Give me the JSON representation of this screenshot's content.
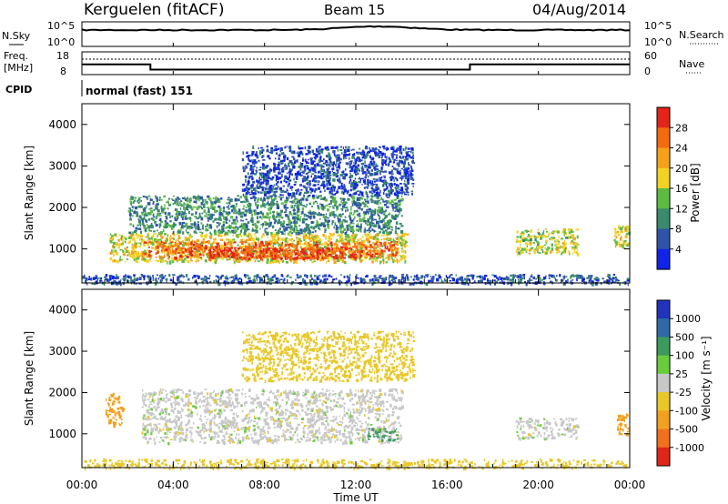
{
  "header": {
    "station": "Kerguelen (fitACF)",
    "beam": "Beam 15",
    "date": "04/Aug/2014"
  },
  "top_panel": {
    "left_label": "N.Sky",
    "left_ticks": [
      "10^5",
      "10^0"
    ],
    "right_label": "N.Search",
    "right_ticks": [
      "10^5",
      "10^0"
    ]
  },
  "freq_panel": {
    "left_label_1": "Freq.",
    "left_label_2": "[MHz]",
    "left_ticks": [
      "18",
      "8"
    ],
    "right_label": "Nave",
    "right_ticks": [
      "60",
      "0"
    ]
  },
  "cpid_panel": {
    "label": "CPID",
    "mode": "normal (fast) 151"
  },
  "x_axis": {
    "label": "Time UT",
    "ticks": [
      "00:00",
      "04:00",
      "08:00",
      "12:00",
      "16:00",
      "20:00",
      "00:00"
    ]
  },
  "power_panel": {
    "ylabel": "Slant Range [km]",
    "yticks": [
      "1000",
      "2000",
      "3000",
      "4000"
    ],
    "colorbar_label": "Power [dB]",
    "colorbar_ticks": [
      "4",
      "8",
      "12",
      "16",
      "20",
      "24",
      "28"
    ],
    "colorbar_colors": [
      "#0f24e6",
      "#2e54a8",
      "#3a8a6e",
      "#5dbb44",
      "#f2d222",
      "#f6a11a",
      "#f36a10",
      "#e2241a"
    ]
  },
  "velocity_panel": {
    "ylabel": "Slant Range [km]",
    "yticks": [
      "1000",
      "2000",
      "3000",
      "4000"
    ],
    "colorbar_label": "Velocity [m s⁻¹]",
    "colorbar_ticks": [
      "1000",
      "500",
      "100",
      "25",
      "-25",
      "-100",
      "-500",
      "-1000"
    ],
    "colorbar_colors": [
      "#2233bb",
      "#2f6aa5",
      "#3c9a5e",
      "#6acc3c",
      "#c8c8c8",
      "#e8c828",
      "#f2a020",
      "#f07020",
      "#e02618"
    ]
  },
  "chart_data": {
    "type": "heatmap",
    "x_range_hours": [
      0,
      24
    ],
    "y_range_km": [
      180,
      4500
    ],
    "freq_mhz_segments": [
      {
        "from_h": 0,
        "to_h": 3,
        "value": 12.5
      },
      {
        "from_h": 3,
        "to_h": 17,
        "value": 10.2
      },
      {
        "from_h": 17,
        "to_h": 24,
        "value": 12.5
      }
    ],
    "power_regions": [
      {
        "t0": 1.2,
        "t1": 14.2,
        "r0": 700,
        "r1": 1400,
        "power_db": 18
      },
      {
        "t0": 2.6,
        "t1": 13.8,
        "r0": 800,
        "r1": 1200,
        "power_db": 26
      },
      {
        "t0": 5.5,
        "t1": 11.5,
        "r0": 780,
        "r1": 1050,
        "power_db": 29
      },
      {
        "t0": 2.0,
        "t1": 14.0,
        "r0": 1400,
        "r1": 2300,
        "power_db": 10
      },
      {
        "t0": 7.0,
        "t1": 14.5,
        "r0": 2300,
        "r1": 3500,
        "power_db": 5
      },
      {
        "t0": 19.0,
        "t1": 21.7,
        "r0": 900,
        "r1": 1500,
        "power_db": 16
      },
      {
        "t0": 23.3,
        "t1": 24.0,
        "r0": 1000,
        "r1": 1600,
        "power_db": 18
      },
      {
        "t0": 0.0,
        "t1": 24.0,
        "r0": 180,
        "r1": 400,
        "power_db": 6
      }
    ],
    "velocity_regions": [
      {
        "t0": 2.6,
        "t1": 14.0,
        "r0": 800,
        "r1": 2100,
        "velocity_ms": 0
      },
      {
        "t0": 12.5,
        "t1": 13.8,
        "r0": 850,
        "r1": 1150,
        "velocity_ms": 150
      },
      {
        "t0": 1.0,
        "t1": 1.8,
        "r0": 1200,
        "r1": 2000,
        "velocity_ms": -300
      },
      {
        "t0": 23.3,
        "t1": 24.0,
        "r0": 1000,
        "r1": 1500,
        "velocity_ms": -300
      },
      {
        "t0": 19.0,
        "t1": 21.7,
        "r0": 900,
        "r1": 1400,
        "velocity_ms": 0
      },
      {
        "t0": 7.0,
        "t1": 14.5,
        "r0": 2300,
        "r1": 3500,
        "velocity_ms": -60
      },
      {
        "t0": 0.0,
        "t1": 24.0,
        "r0": 180,
        "r1": 400,
        "velocity_ms": -60
      }
    ]
  }
}
